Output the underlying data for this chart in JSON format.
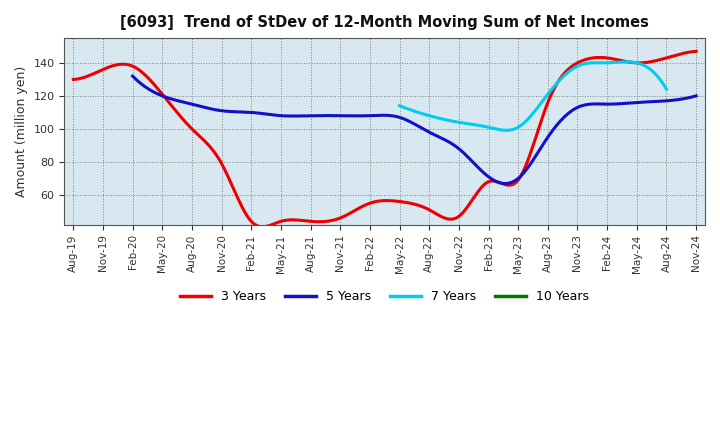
{
  "title": "[6093]  Trend of StDev of 12-Month Moving Sum of Net Incomes",
  "ylabel": "Amount (million yen)",
  "background_color": "#ffffff",
  "plot_bg_color": "#ddeeff",
  "grid_color": "#888888",
  "ylim": [
    42,
    155
  ],
  "yticks": [
    60,
    80,
    100,
    120,
    140
  ],
  "x_labels": [
    "Aug-19",
    "Nov-19",
    "Feb-20",
    "May-20",
    "Aug-20",
    "Nov-20",
    "Feb-21",
    "May-21",
    "Aug-21",
    "Nov-21",
    "Feb-22",
    "May-22",
    "Aug-22",
    "Nov-22",
    "Feb-23",
    "May-23",
    "Aug-23",
    "Nov-23",
    "Feb-24",
    "May-24",
    "Aug-24",
    "Nov-24"
  ],
  "series": {
    "3 Years": {
      "color": "#ee0000",
      "linewidth": 2.2,
      "values": [
        130,
        136,
        138,
        121,
        100,
        79,
        44,
        44,
        44,
        46,
        55,
        56,
        51,
        47,
        68,
        69,
        116,
        140,
        143,
        140,
        143,
        147
      ]
    },
    "5 Years": {
      "color": "#1111cc",
      "linewidth": 2.2,
      "values": [
        null,
        null,
        132,
        120,
        115,
        111,
        110,
        108,
        108,
        108,
        108,
        107,
        98,
        88,
        71,
        70,
        95,
        113,
        115,
        116,
        117,
        120
      ]
    },
    "7 Years": {
      "color": "#00ccee",
      "linewidth": 2.2,
      "values": [
        null,
        null,
        null,
        null,
        null,
        null,
        null,
        null,
        null,
        null,
        null,
        114,
        108,
        104,
        101,
        101,
        121,
        138,
        140,
        140,
        124,
        null
      ]
    },
    "10 Years": {
      "color": "#007700",
      "linewidth": 2.2,
      "values": [
        null,
        null,
        null,
        null,
        null,
        null,
        null,
        null,
        null,
        null,
        null,
        null,
        null,
        null,
        null,
        null,
        null,
        null,
        null,
        null,
        null,
        null
      ]
    }
  },
  "legend_colors": [
    "#ee0000",
    "#1111cc",
    "#00ccee",
    "#007700"
  ],
  "legend_labels": [
    "3 Years",
    "5 Years",
    "7 Years",
    "10 Years"
  ]
}
